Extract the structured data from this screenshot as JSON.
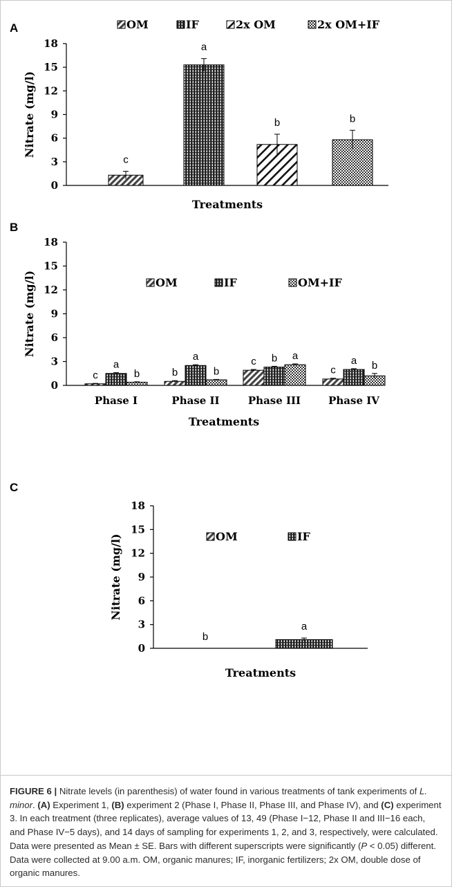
{
  "figure_label": "FIGURE 6 |",
  "caption": {
    "p1": " Nitrate levels (in parenthesis) of water found in various treatments of tank experiments of ",
    "species": "L. minor",
    "p2": ". ",
    "a_tag": "(A)",
    "p3": " Experiment 1, ",
    "b_tag": "(B)",
    "p4": " experiment 2 (Phase I, Phase II, Phase III, and Phase IV), and ",
    "c_tag": "(C)",
    "p5": " experiment 3. In each treatment (three replicates), average values of 13, 49 (Phase I−12, Phase II and III−16 each, and Phase IV−5 days), and 14 days of sampling for experiments 1, 2, and 3, respectively, were calculated. Data were presented as Mean ± SE. Bars with different superscripts were significantly (",
    "p_sym": "P",
    "p6": " < 0.05) different. Data were collected at 9.00 a.m. OM, organic manures; IF, inorganic fertilizers; 2x OM, double dose of organic manures."
  },
  "chart_data": [
    {
      "panel": "A",
      "type": "bar",
      "ylabel": "Nitrate (mg/l)",
      "xlabel": "Treatments",
      "ylim": [
        0,
        18
      ],
      "yticks": [
        "0",
        "3",
        "6",
        "9",
        "12",
        "15",
        "18"
      ],
      "legend_placement": "top",
      "legend": [
        "OM",
        "IF",
        "2x OM",
        "2x OM+IF"
      ],
      "series": [
        {
          "name": "OM",
          "values": [
            1.3
          ],
          "errors": [
            0.5
          ],
          "sig": [
            "c"
          ]
        },
        {
          "name": "IF",
          "values": [
            15.3
          ],
          "errors": [
            0.8
          ],
          "sig": [
            "a"
          ]
        },
        {
          "name": "2x OM",
          "values": [
            5.2
          ],
          "errors": [
            1.3
          ],
          "sig": [
            "b"
          ]
        },
        {
          "name": "2x OM+IF",
          "values": [
            5.8
          ],
          "errors": [
            1.2
          ],
          "sig": [
            "b"
          ]
        }
      ]
    },
    {
      "panel": "B",
      "type": "bar",
      "ylabel": "Nitrate (mg/l)",
      "xlabel": "Treatments",
      "ylim": [
        0,
        18
      ],
      "yticks": [
        "0",
        "3",
        "6",
        "9",
        "12",
        "15",
        "18"
      ],
      "legend_placement": "middle",
      "legend": [
        "OM",
        "IF",
        "OM+IF"
      ],
      "categories": [
        "Phase I",
        "Phase II",
        "Phase III",
        "Phase IV"
      ],
      "series": [
        {
          "name": "OM",
          "values": [
            0.2,
            0.5,
            1.9,
            0.8
          ],
          "errors": [
            0.05,
            0.1,
            0.1,
            0.1
          ],
          "sig": [
            "c",
            "b",
            "c",
            "c"
          ]
        },
        {
          "name": "IF",
          "values": [
            1.5,
            2.5,
            2.3,
            2.0
          ],
          "errors": [
            0.1,
            0.1,
            0.1,
            0.1
          ],
          "sig": [
            "a",
            "a",
            "b",
            "a"
          ]
        },
        {
          "name": "OM+IF",
          "values": [
            0.4,
            0.7,
            2.6,
            1.2
          ],
          "errors": [
            0.05,
            0.05,
            0.1,
            0.3
          ],
          "sig": [
            "b",
            "b",
            "a",
            "b"
          ]
        }
      ]
    },
    {
      "panel": "C",
      "type": "bar",
      "ylabel": "Nitrate (mg/l)",
      "xlabel": "Treatments",
      "ylim": [
        0,
        18
      ],
      "yticks": [
        "0",
        "3",
        "6",
        "9",
        "12",
        "15",
        "18"
      ],
      "legend_placement": "middle",
      "legend": [
        "OM",
        "IF"
      ],
      "series": [
        {
          "name": "OM",
          "values": [
            0.0
          ],
          "errors": [
            0.0
          ],
          "sig": [
            "b"
          ]
        },
        {
          "name": "IF",
          "values": [
            1.1
          ],
          "errors": [
            0.2
          ],
          "sig": [
            "a"
          ]
        }
      ]
    }
  ]
}
